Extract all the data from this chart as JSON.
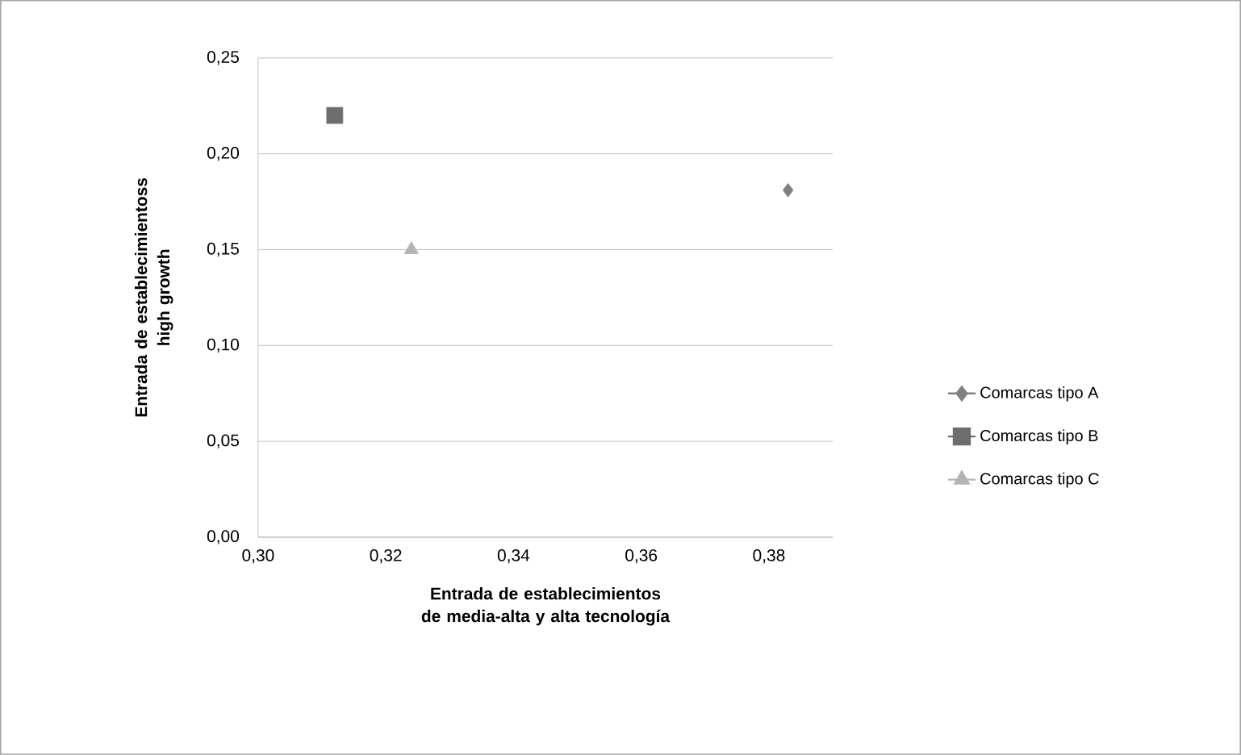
{
  "chart_data": {
    "type": "scatter",
    "xlabel": "Entrada de establecimientos de media-alta y alta tecnología",
    "ylabel": "Entrada de establecimientoss high growth",
    "series": [
      {
        "name": "Comarcas tipo A",
        "color": "#808080",
        "marker": "diamond",
        "x": [
          0.383
        ],
        "values": [
          0.181
        ]
      },
      {
        "name": "Comarcas tipo B",
        "color": "#6e6e6e",
        "marker": "square",
        "x": [
          0.312
        ],
        "values": [
          0.22
        ]
      },
      {
        "name": "Comarcas tipo C",
        "color": "#b4b4b4",
        "marker": "triangle",
        "x": [
          0.324
        ],
        "values": [
          0.15
        ]
      }
    ],
    "xlim": [
      0.3,
      0.39
    ],
    "ylim": [
      0,
      0.25
    ],
    "xticks": [
      {
        "value": 0.3,
        "label": "0,30"
      },
      {
        "value": 0.32,
        "label": "0,32"
      },
      {
        "value": 0.34,
        "label": "0,34"
      },
      {
        "value": 0.36,
        "label": "0,36"
      },
      {
        "value": 0.38,
        "label": "0,38"
      }
    ],
    "yticks": [
      {
        "value": 0,
        "label": "0,00"
      },
      {
        "value": 0.05,
        "label": "0,05"
      },
      {
        "value": 0.1,
        "label": "0,10"
      },
      {
        "value": 0.15,
        "label": "0,15"
      },
      {
        "value": 0.2,
        "label": "0,20"
      },
      {
        "value": 0.25,
        "label": "0,25"
      }
    ],
    "grid": "y",
    "legend": "right"
  }
}
